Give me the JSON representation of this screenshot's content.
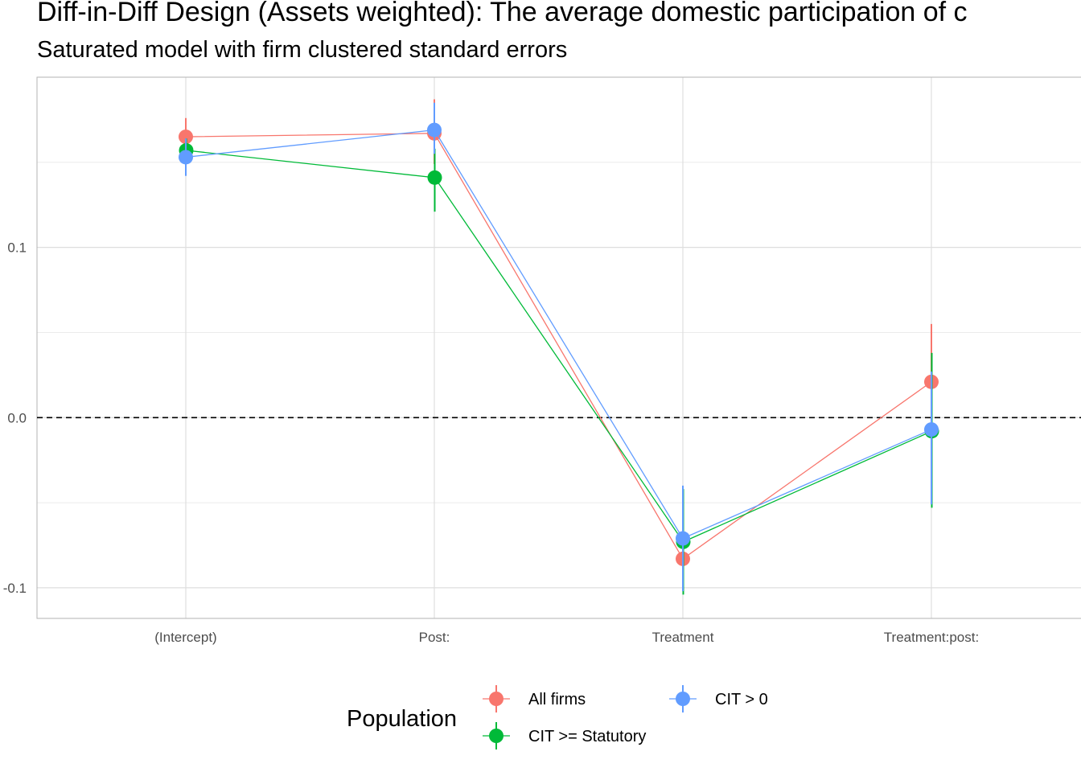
{
  "title": "Diff-in-Diff Design (Assets weighted): The average domestic participation of c",
  "subtitle": "Saturated model with firm clustered standard errors",
  "chart_data": {
    "type": "line",
    "categories": [
      "(Intercept)",
      "Post:",
      "Treatment",
      "Treatment:post:"
    ],
    "ylim": [
      -0.118,
      0.2
    ],
    "yticks": [
      -0.1,
      0.0,
      0.1
    ],
    "ytick_labels": [
      "-0.1",
      "0.0",
      "0.1"
    ],
    "reference_line": 0,
    "grid": true,
    "legend_title": "Population",
    "legend_position": "bottom",
    "series": [
      {
        "name": "All firms",
        "color": "#F8766D",
        "values": [
          0.165,
          0.167,
          -0.083,
          0.021
        ],
        "lower": [
          0.155,
          0.149,
          -0.09,
          -0.012
        ],
        "upper": [
          0.176,
          0.187,
          -0.073,
          0.055
        ]
      },
      {
        "name": "CIT >= Statutory",
        "color": "#00BA38",
        "values": [
          0.157,
          0.141,
          -0.073,
          -0.008
        ],
        "lower": [
          0.15,
          0.121,
          -0.104,
          -0.053
        ],
        "upper": [
          0.164,
          0.158,
          -0.042,
          0.038
        ]
      },
      {
        "name": "CIT > 0",
        "color": "#619CFF",
        "values": [
          0.153,
          0.169,
          -0.071,
          -0.007
        ],
        "lower": [
          0.142,
          0.155,
          -0.102,
          -0.051
        ],
        "upper": [
          0.164,
          0.185,
          -0.04,
          0.027
        ]
      }
    ]
  }
}
